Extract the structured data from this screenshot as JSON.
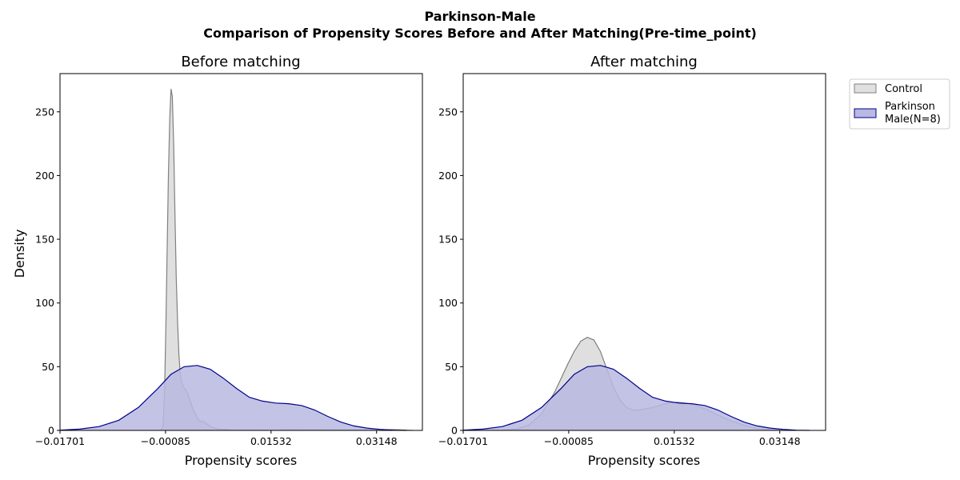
{
  "figure": {
    "suptitle_line1": "Parkinson-Male",
    "suptitle_line2": "Comparison of Propensity Scores Before and After Matching(Pre-time_point)"
  },
  "legend": {
    "items": [
      {
        "label": "Control",
        "fill": "#e0e0e0",
        "stroke": "#808080"
      },
      {
        "label_line1": "Parkinson",
        "label_line2": "Male(N=8)",
        "fill": "#b9b9e2",
        "stroke": "#00008b"
      }
    ]
  },
  "chart_data": [
    {
      "type": "area",
      "title": "Before matching",
      "xlabel": "Propensity scores",
      "ylabel": "Density",
      "xlim": [
        -0.01701,
        0.0385
      ],
      "ylim": [
        0,
        280
      ],
      "xticks": [
        "-0.01701",
        "-0.00085",
        "0.01532",
        "0.03148"
      ],
      "xtick_values": [
        -0.01701,
        -0.00085,
        0.01532,
        0.03148
      ],
      "yticks": [
        0,
        50,
        100,
        150,
        200,
        250
      ],
      "series": [
        {
          "name": "Control",
          "color": "#808080",
          "fill": "#d3d3d3",
          "x": [
            -0.0015,
            -0.0012,
            -0.001,
            -0.0008,
            -0.0006,
            -0.0004,
            -0.0002,
            0.0,
            0.0002,
            0.0004,
            0.0006,
            0.0008,
            0.001,
            0.0012,
            0.0014,
            0.0016,
            0.0019,
            0.0022,
            0.0026,
            0.003,
            0.0034,
            0.0038,
            0.0042,
            0.0046,
            0.005,
            0.0055,
            0.006,
            0.0066,
            0.0072,
            0.008,
            0.009,
            0.01,
            0.0115,
            0.0135,
            0.0155,
            0.018,
            0.021,
            0.025,
            0.03,
            0.034,
            0.037
          ],
          "y": [
            0,
            5,
            30,
            80,
            140,
            200,
            245,
            268,
            262,
            225,
            170,
            120,
            85,
            60,
            45,
            38,
            34,
            32,
            28,
            22,
            16,
            12,
            8,
            7,
            7,
            5,
            3,
            2,
            1,
            0.8,
            0.4,
            0.2,
            0.3,
            0.2,
            0.1,
            0.5,
            0.3,
            0.4,
            0.2,
            0.6,
            0
          ]
        },
        {
          "name": "Parkinson Male(N=8)",
          "color": "#00008b",
          "fill": "#b9b9e2",
          "x": [
            -0.017,
            -0.014,
            -0.011,
            -0.008,
            -0.005,
            -0.002,
            0.0,
            0.002,
            0.004,
            0.006,
            0.008,
            0.01,
            0.012,
            0.014,
            0.016,
            0.018,
            0.02,
            0.022,
            0.024,
            0.026,
            0.028,
            0.03,
            0.032,
            0.034,
            0.036
          ],
          "y": [
            0.2,
            1,
            3,
            8,
            18,
            33,
            44,
            50,
            51,
            48,
            41,
            33,
            26,
            23,
            21.5,
            21,
            19.5,
            16,
            11,
            6.5,
            3.5,
            1.8,
            0.8,
            0.2,
            0
          ]
        }
      ]
    },
    {
      "type": "area",
      "title": "After matching",
      "xlabel": "Propensity scores",
      "ylabel": "",
      "xlim": [
        -0.01701,
        0.0385
      ],
      "ylim": [
        0,
        280
      ],
      "xticks": [
        "-0.01701",
        "-0.00085",
        "0.01532",
        "0.03148"
      ],
      "xtick_values": [
        -0.01701,
        -0.00085,
        0.01532,
        0.03148
      ],
      "yticks": [
        0,
        50,
        100,
        150,
        200,
        250
      ],
      "series": [
        {
          "name": "Control",
          "color": "#808080",
          "fill": "#d3d3d3",
          "x": [
            -0.011,
            -0.009,
            -0.007,
            -0.005,
            -0.003,
            -0.001,
            0.0,
            0.001,
            0.002,
            0.003,
            0.004,
            0.005,
            0.006,
            0.007,
            0.008,
            0.009,
            0.01,
            0.011,
            0.012,
            0.013,
            0.014,
            0.015,
            0.016,
            0.017,
            0.018,
            0.02,
            0.022,
            0.024,
            0.026,
            0.028,
            0.03,
            0.032
          ],
          "y": [
            0,
            1,
            4,
            13,
            30,
            52,
            62,
            70,
            73,
            71,
            62,
            48,
            34,
            24,
            18,
            16,
            16,
            17,
            18,
            19.5,
            21,
            22,
            22,
            21.5,
            20.5,
            17,
            12,
            7.5,
            4,
            1.5,
            0.5,
            0
          ]
        },
        {
          "name": "Parkinson Male(N=8)",
          "color": "#00008b",
          "fill": "#b9b9e2",
          "x": [
            -0.017,
            -0.014,
            -0.011,
            -0.008,
            -0.005,
            -0.002,
            0.0,
            0.002,
            0.004,
            0.006,
            0.008,
            0.01,
            0.012,
            0.014,
            0.016,
            0.018,
            0.02,
            0.022,
            0.024,
            0.026,
            0.028,
            0.03,
            0.032,
            0.034,
            0.036
          ],
          "y": [
            0.2,
            1,
            3,
            8,
            18,
            33,
            44,
            50,
            51,
            48,
            41,
            33,
            26,
            23,
            21.5,
            21,
            19.5,
            16,
            11,
            6.5,
            3.5,
            1.8,
            0.8,
            0.2,
            0
          ]
        }
      ]
    }
  ]
}
